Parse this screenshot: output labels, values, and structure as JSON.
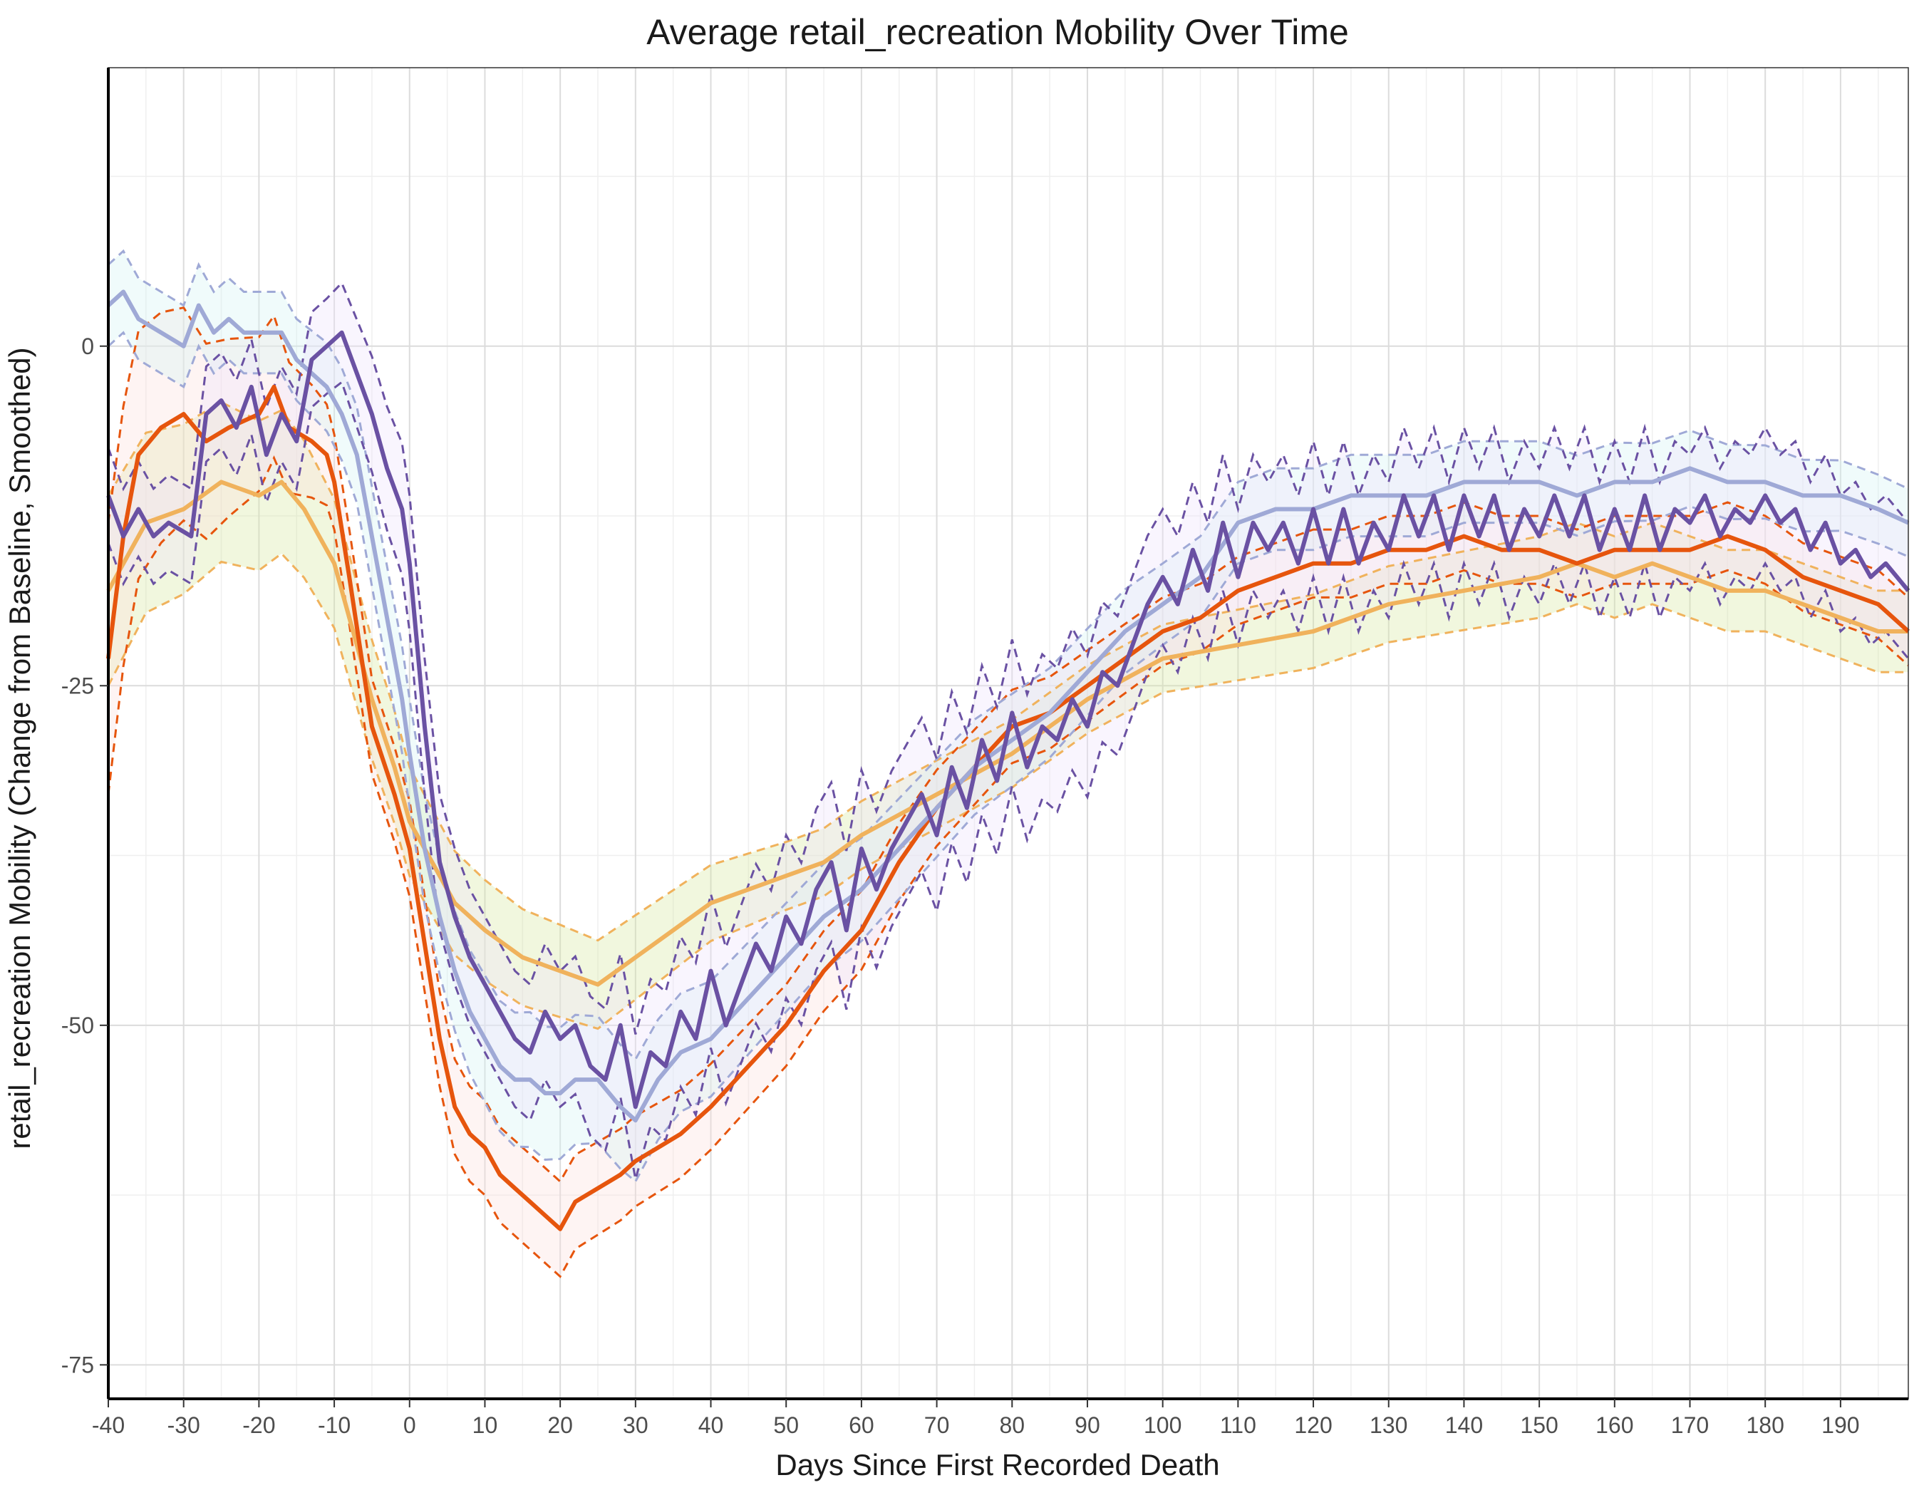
{
  "chart_data": {
    "type": "line",
    "title": "Average retail_recreation Mobility Over Time",
    "xlabel": "Days Since First Recorded Death",
    "ylabel": "retail_recreation Mobility (Change from Baseline, Smoothed)",
    "xlim": [
      -40,
      199
    ],
    "ylim": [
      -77.5,
      20.5
    ],
    "x_ticks": [
      -40,
      -30,
      -20,
      -10,
      0,
      10,
      20,
      30,
      40,
      50,
      60,
      70,
      80,
      90,
      100,
      110,
      120,
      130,
      140,
      150,
      160,
      170,
      180,
      190
    ],
    "x_tick_labels": [
      "-40",
      "-30",
      "-20",
      "-10",
      "0",
      "10",
      "20",
      "30",
      "40",
      "50",
      "60",
      "70",
      "80",
      "90",
      "100",
      "110",
      "120",
      "130",
      "140",
      "150",
      "160",
      "170",
      "180",
      "190"
    ],
    "y_ticks": [
      0,
      -25,
      -50,
      -75
    ],
    "y_tick_labels": [
      "0",
      "-25",
      "-50",
      "-75"
    ],
    "grid": true,
    "legend": "none",
    "band_note": "each series drawn with a dashed confidence band (approx. +/- width) and light fill",
    "series": [
      {
        "name": "series-light-orange",
        "color": "#f0b25c",
        "fill": "#d8e8a0",
        "band_width": 2.8,
        "band_x": [
          -40,
          0,
          50,
          100,
          150,
          199
        ],
        "band_widths": [
          7,
          4,
          2.5,
          2.5,
          3,
          3
        ],
        "x": [
          -40,
          -35,
          -30,
          -25,
          -20,
          -17,
          -14,
          -10,
          -5,
          -2,
          0,
          3,
          6,
          10,
          15,
          20,
          25,
          30,
          35,
          40,
          45,
          50,
          55,
          60,
          70,
          80,
          90,
          100,
          110,
          120,
          130,
          140,
          150,
          155,
          160,
          165,
          170,
          175,
          180,
          185,
          190,
          195,
          199
        ],
        "y": [
          -18,
          -13,
          -12,
          -10,
          -11,
          -10,
          -12,
          -16,
          -26,
          -31,
          -35,
          -38,
          -41,
          -43,
          -45,
          -46,
          -47,
          -45,
          -43,
          -41,
          -40,
          -39,
          -38,
          -36,
          -33,
          -30,
          -26,
          -23,
          -22,
          -21,
          -19,
          -18,
          -17,
          -16,
          -17,
          -16,
          -17,
          -18,
          -18,
          -19,
          -20,
          -21,
          -21
        ]
      },
      {
        "name": "series-dark-orange",
        "color": "#e6550d",
        "fill": "#fde0dd",
        "band_x": [
          -40,
          -10,
          0,
          20,
          50,
          100,
          150,
          199
        ],
        "band_widths": [
          10,
          3.5,
          3.5,
          3.5,
          3,
          2.5,
          2.5,
          2.5
        ],
        "x": [
          -40,
          -38,
          -36,
          -33,
          -30,
          -27,
          -24,
          -20,
          -18,
          -16,
          -13,
          -11,
          -10,
          -8,
          -5,
          -2,
          0,
          2,
          4,
          6,
          8,
          10,
          12,
          14,
          16,
          18,
          20,
          22,
          25,
          28,
          30,
          33,
          36,
          40,
          45,
          50,
          55,
          60,
          65,
          70,
          75,
          80,
          85,
          90,
          95,
          100,
          105,
          110,
          115,
          120,
          125,
          130,
          135,
          140,
          145,
          150,
          155,
          160,
          165,
          170,
          175,
          180,
          185,
          190,
          195,
          199
        ],
        "y": [
          -23,
          -14,
          -8,
          -6,
          -5,
          -7,
          -6,
          -5,
          -3,
          -6,
          -7,
          -8,
          -10,
          -17,
          -28,
          -33,
          -37,
          -44,
          -51,
          -56,
          -58,
          -59,
          -61,
          -62,
          -63,
          -64,
          -65,
          -63,
          -62,
          -61,
          -60,
          -59,
          -58,
          -56,
          -53,
          -50,
          -46,
          -43,
          -38,
          -34,
          -31,
          -28,
          -27,
          -25,
          -23,
          -21,
          -20,
          -18,
          -17,
          -16,
          -16,
          -15,
          -15,
          -14,
          -15,
          -15,
          -16,
          -15,
          -15,
          -15,
          -14,
          -15,
          -17,
          -18,
          -19,
          -21
        ]
      },
      {
        "name": "series-light-purple",
        "color": "#9fa9d6",
        "fill": "#d4f4f4",
        "band_x": [
          -40,
          -15,
          0,
          15,
          30,
          50,
          100,
          150,
          199
        ],
        "band_widths": [
          3,
          3,
          4,
          5,
          4.5,
          4,
          3,
          3,
          2.5
        ],
        "x": [
          -40,
          -38,
          -36,
          -33,
          -30,
          -28,
          -26,
          -24,
          -22,
          -20,
          -17,
          -15,
          -13,
          -11,
          -9,
          -7,
          -5,
          -3,
          -1,
          0,
          2,
          4,
          6,
          8,
          10,
          12,
          14,
          16,
          18,
          20,
          22,
          25,
          28,
          30,
          33,
          36,
          40,
          45,
          50,
          55,
          60,
          65,
          70,
          75,
          80,
          85,
          90,
          95,
          100,
          105,
          110,
          115,
          120,
          125,
          130,
          135,
          140,
          145,
          150,
          155,
          160,
          165,
          170,
          175,
          180,
          185,
          190,
          195,
          199
        ],
        "y": [
          3,
          4,
          2,
          1,
          0,
          3,
          1,
          2,
          1,
          1,
          1,
          -1,
          -2,
          -3,
          -5,
          -8,
          -14,
          -20,
          -26,
          -30,
          -37,
          -42,
          -46,
          -49,
          -51,
          -53,
          -54,
          -54,
          -55,
          -55,
          -54,
          -54,
          -56,
          -57,
          -54,
          -52,
          -51,
          -48,
          -45,
          -42,
          -40,
          -37,
          -34,
          -31,
          -29,
          -27,
          -24,
          -21,
          -19,
          -17,
          -13,
          -12,
          -12,
          -11,
          -11,
          -11,
          -10,
          -10,
          -10,
          -11,
          -10,
          -10,
          -9,
          -10,
          -10,
          -11,
          -11,
          -12,
          -13
        ]
      },
      {
        "name": "series-dark-purple",
        "color": "#6a51a3",
        "fill": "#efe2fb",
        "band_x": [
          -40,
          -10,
          0,
          20,
          50,
          100,
          150,
          199
        ],
        "band_widths": [
          3.5,
          3.5,
          5,
          5,
          6,
          5,
          5,
          5
        ],
        "x": [
          -40,
          -38,
          -36,
          -34,
          -32,
          -29,
          -27,
          -25,
          -23,
          -21,
          -19,
          -17,
          -15,
          -13,
          -11,
          -9,
          -7,
          -5,
          -3,
          -1,
          0,
          2,
          4,
          6,
          8,
          10,
          12,
          14,
          16,
          18,
          20,
          22,
          24,
          26,
          28,
          30,
          32,
          34,
          36,
          38,
          40,
          42,
          44,
          46,
          48,
          50,
          52,
          54,
          56,
          58,
          60,
          62,
          64,
          66,
          68,
          70,
          72,
          74,
          76,
          78,
          80,
          82,
          84,
          86,
          88,
          90,
          92,
          94,
          96,
          98,
          100,
          102,
          104,
          106,
          108,
          110,
          112,
          114,
          116,
          118,
          120,
          122,
          124,
          126,
          128,
          130,
          132,
          134,
          136,
          138,
          140,
          142,
          144,
          146,
          148,
          150,
          152,
          154,
          156,
          158,
          160,
          162,
          164,
          166,
          168,
          170,
          172,
          174,
          176,
          178,
          180,
          182,
          184,
          186,
          188,
          190,
          192,
          194,
          196,
          199
        ],
        "y": [
          -11,
          -14,
          -12,
          -14,
          -13,
          -14,
          -5,
          -4,
          -6,
          -3,
          -8,
          -5,
          -7,
          -1,
          0,
          1,
          -2,
          -5,
          -9,
          -12,
          -16,
          -28,
          -38,
          -42,
          -45,
          -47,
          -49,
          -51,
          -52,
          -49,
          -51,
          -50,
          -53,
          -54,
          -50,
          -56,
          -52,
          -53,
          -49,
          -51,
          -46,
          -50,
          -47,
          -44,
          -46,
          -42,
          -44,
          -40,
          -38,
          -43,
          -37,
          -40,
          -37,
          -35,
          -33,
          -36,
          -31,
          -34,
          -29,
          -32,
          -27,
          -31,
          -28,
          -29,
          -26,
          -28,
          -24,
          -25,
          -22,
          -19,
          -17,
          -19,
          -15,
          -18,
          -13,
          -17,
          -13,
          -15,
          -13,
          -16,
          -12,
          -16,
          -12,
          -16,
          -13,
          -15,
          -11,
          -14,
          -11,
          -15,
          -11,
          -14,
          -11,
          -15,
          -12,
          -14,
          -11,
          -14,
          -11,
          -15,
          -12,
          -15,
          -11,
          -15,
          -12,
          -13,
          -11,
          -14,
          -12,
          -13,
          -11,
          -13,
          -12,
          -15,
          -13,
          -16,
          -15,
          -17,
          -16,
          -18
        ]
      }
    ]
  }
}
